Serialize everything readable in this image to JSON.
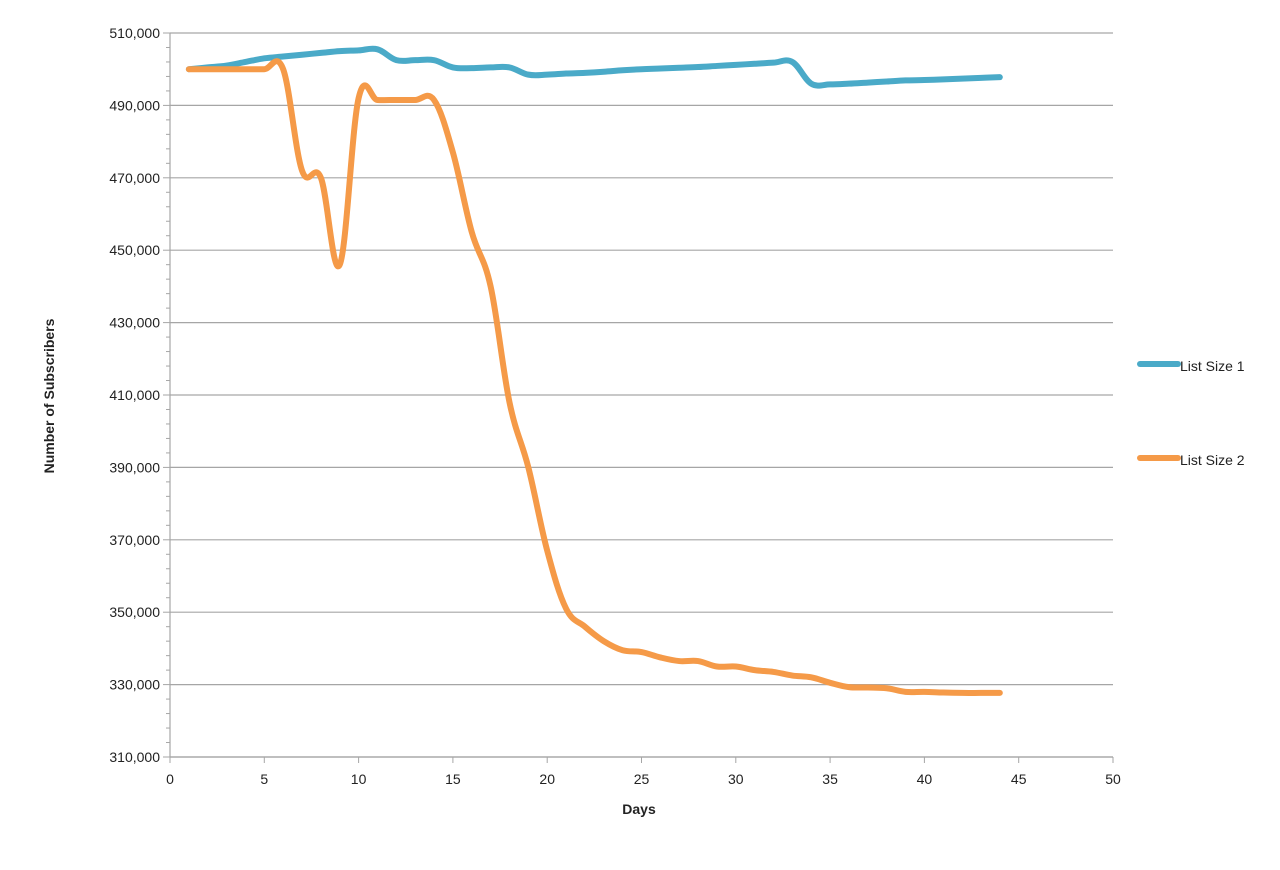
{
  "chart_data": {
    "type": "line",
    "title": "",
    "xlabel": "Days",
    "ylabel": "Number of Subscribers",
    "xlim": [
      0,
      50
    ],
    "ylim": [
      310000,
      510000
    ],
    "x_ticks": [
      0,
      5,
      10,
      15,
      20,
      25,
      30,
      35,
      40,
      45,
      50
    ],
    "x_tick_labels": [
      "0",
      "5",
      "10",
      "15",
      "20",
      "25",
      "30",
      "35",
      "40",
      "45",
      "50"
    ],
    "y_ticks": [
      310000,
      330000,
      350000,
      370000,
      390000,
      410000,
      430000,
      450000,
      470000,
      490000,
      510000
    ],
    "y_tick_labels": [
      "310,000",
      "330,000",
      "350,000",
      "370,000",
      "390,000",
      "410,000",
      "430,000",
      "450,000",
      "470,000",
      "490,000",
      "510,000"
    ],
    "grid": true,
    "legend_position": "right",
    "series": [
      {
        "name": "List Size 1",
        "color": "#4aaac8",
        "x": [
          1,
          2,
          3,
          4,
          5,
          6,
          7,
          8,
          9,
          10,
          11,
          12,
          13,
          14,
          15,
          16,
          17,
          18,
          19,
          20,
          21,
          22,
          23,
          24,
          25,
          26,
          27,
          28,
          29,
          30,
          31,
          32,
          33,
          34,
          35,
          36,
          37,
          38,
          39,
          40,
          41,
          42,
          43,
          44
        ],
        "y": [
          500000,
          500500,
          501000,
          502000,
          503000,
          503500,
          504000,
          504500,
          505000,
          505200,
          505500,
          502500,
          502500,
          502500,
          500500,
          500300,
          500500,
          500500,
          498500,
          498500,
          498800,
          499000,
          499300,
          499700,
          500000,
          500200,
          500400,
          500600,
          500900,
          501200,
          501500,
          501800,
          502000,
          496000,
          495800,
          496000,
          496300,
          496600,
          496900,
          497000,
          497200,
          497400,
          497600,
          497800
        ]
      },
      {
        "name": "List Size 2",
        "color": "#f59a48",
        "x": [
          1,
          2,
          3,
          4,
          5,
          6,
          7,
          8,
          9,
          10,
          11,
          12,
          13,
          14,
          15,
          16,
          17,
          18,
          19,
          20,
          21,
          22,
          23,
          24,
          25,
          26,
          27,
          28,
          29,
          30,
          31,
          32,
          33,
          34,
          35,
          36,
          37,
          38,
          39,
          40,
          41,
          42,
          43,
          44
        ],
        "y": [
          500000,
          500000,
          500000,
          500000,
          500000,
          500000,
          472000,
          470000,
          446000,
          492000,
          491500,
          491500,
          491500,
          491500,
          477000,
          455000,
          440000,
          408000,
          390000,
          367000,
          351000,
          346000,
          342000,
          339500,
          339000,
          337500,
          336500,
          336500,
          335000,
          335000,
          334000,
          333500,
          332500,
          332000,
          330500,
          329300,
          329200,
          329000,
          328000,
          328000,
          327800,
          327700,
          327700,
          327700
        ]
      }
    ]
  }
}
